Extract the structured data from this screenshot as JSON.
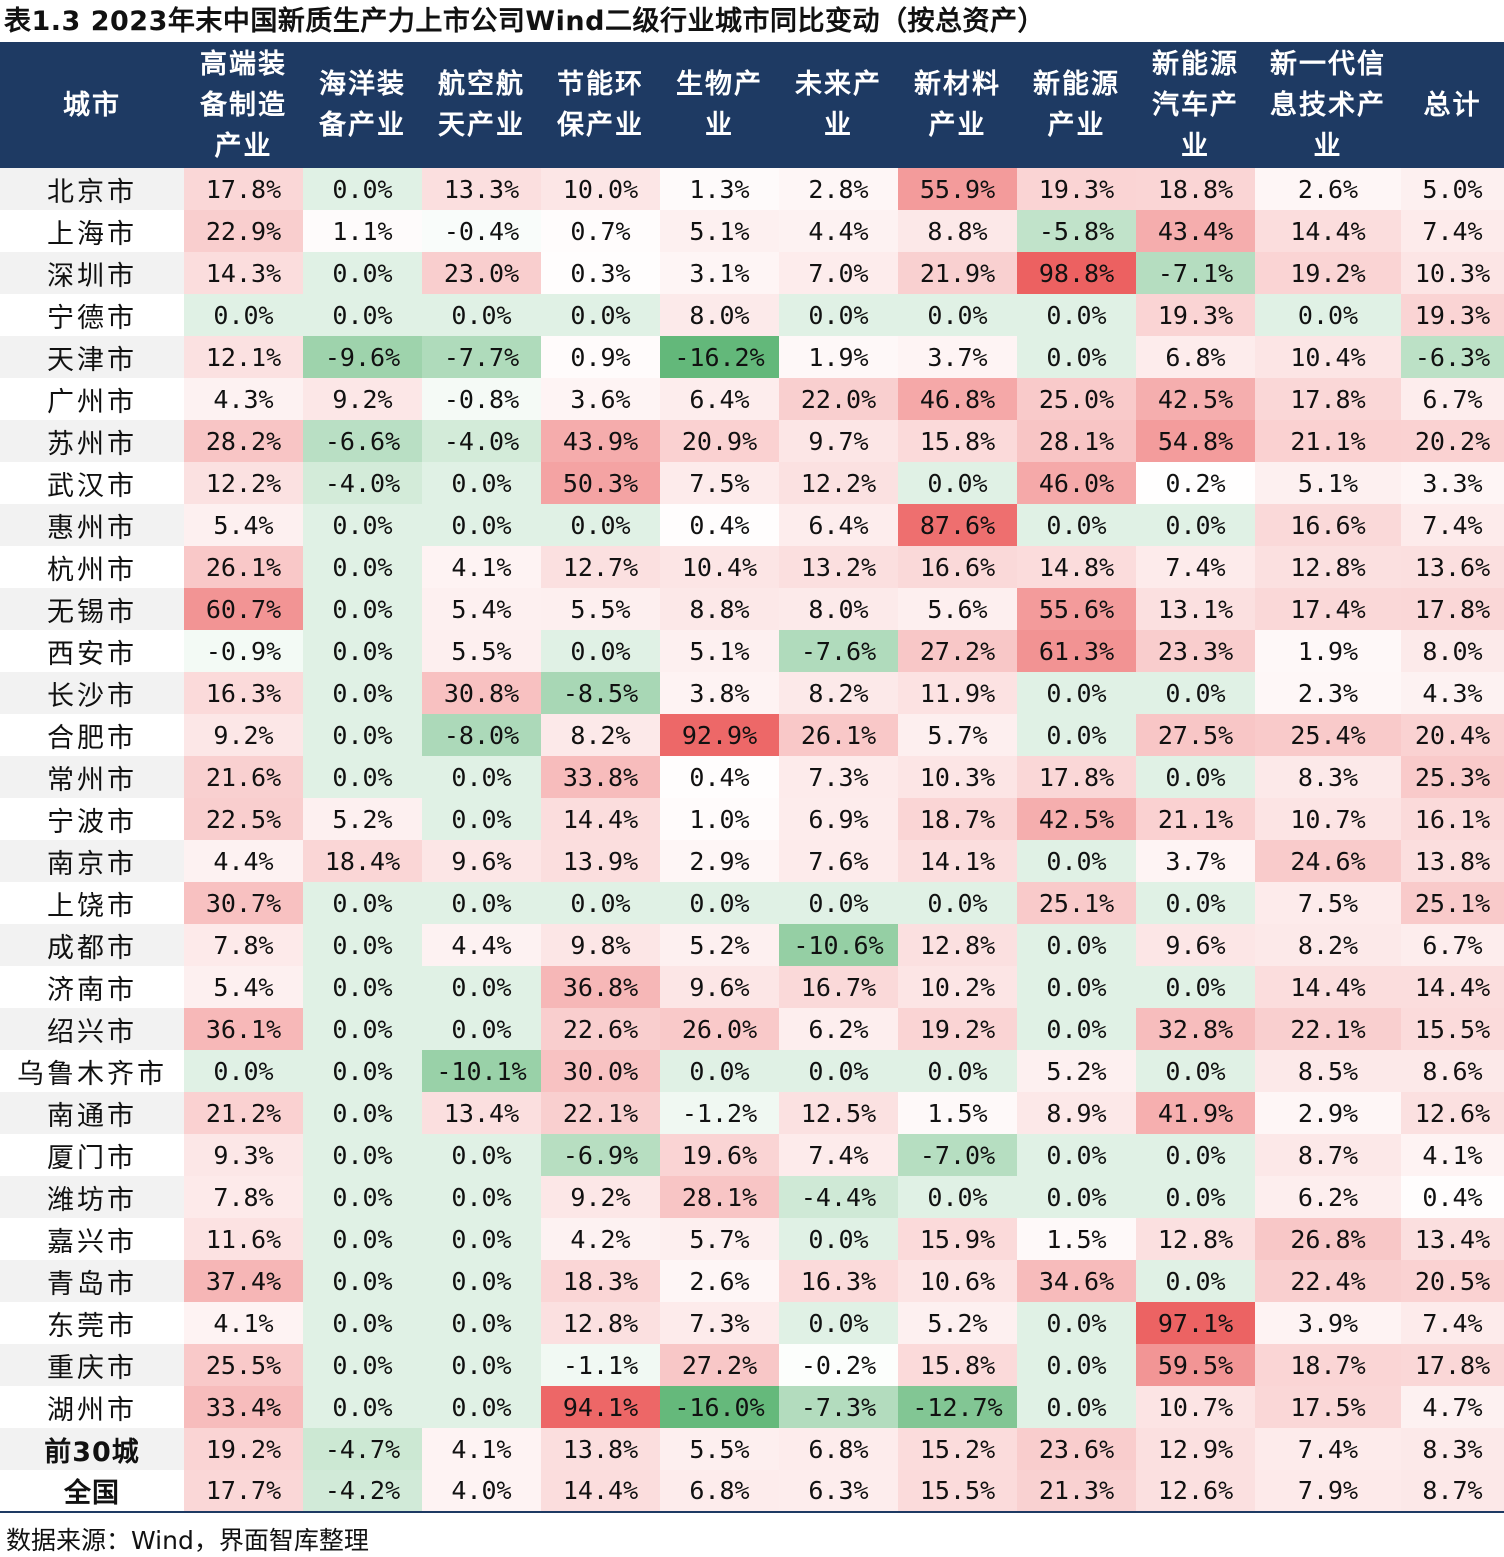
{
  "title": "表1.3 2023年末中国新质生产力上市公司Wind二级行业城市同比变动（按总资产）",
  "source": "数据来源：Wind，界面智库整理",
  "chart_data": {
    "type": "table",
    "subtype": "heatmap",
    "columns": [
      [
        "城市"
      ],
      [
        "高端装",
        "备制造",
        "产业"
      ],
      [
        "海洋装",
        "备产业"
      ],
      [
        "航空航",
        "天产业"
      ],
      [
        "节能环",
        "保产业"
      ],
      [
        "生物产",
        "业"
      ],
      [
        "未来产",
        "业"
      ],
      [
        "新材料",
        "产业"
      ],
      [
        "新能源",
        "产业"
      ],
      [
        "新能源",
        "汽车产",
        "业"
      ],
      [
        "新一代信",
        "息技术产",
        "业"
      ],
      [
        "总计"
      ]
    ],
    "unit": "%",
    "colors": {
      "positive": "#ec5f5f",
      "negative": "#63b87a",
      "zero": "#e0f1e5",
      "header": "#1e3a63"
    },
    "rows": [
      {
        "city": "北京市",
        "values": [
          17.8,
          0.0,
          13.3,
          10.0,
          1.3,
          2.8,
          55.9,
          19.3,
          18.8,
          2.6,
          5.0
        ]
      },
      {
        "city": "上海市",
        "values": [
          22.9,
          1.1,
          -0.4,
          0.7,
          5.1,
          4.4,
          8.8,
          -5.8,
          43.4,
          14.4,
          7.4
        ]
      },
      {
        "city": "深圳市",
        "values": [
          14.3,
          0.0,
          23.0,
          0.3,
          3.1,
          7.0,
          21.9,
          98.8,
          -7.1,
          19.2,
          10.3
        ]
      },
      {
        "city": "宁德市",
        "values": [
          0.0,
          0.0,
          0.0,
          0.0,
          8.0,
          0.0,
          0.0,
          0.0,
          19.3,
          0.0,
          19.3
        ]
      },
      {
        "city": "天津市",
        "values": [
          12.1,
          -9.6,
          -7.7,
          0.9,
          -16.2,
          1.9,
          3.7,
          0.0,
          6.8,
          10.4,
          -6.3
        ]
      },
      {
        "city": "广州市",
        "values": [
          4.3,
          9.2,
          -0.8,
          3.6,
          6.4,
          22.0,
          46.8,
          25.0,
          42.5,
          17.8,
          6.7
        ]
      },
      {
        "city": "苏州市",
        "values": [
          28.2,
          -6.6,
          -4.0,
          43.9,
          20.9,
          9.7,
          15.8,
          28.1,
          54.8,
          21.1,
          20.2
        ]
      },
      {
        "city": "武汉市",
        "values": [
          12.2,
          -4.0,
          0.0,
          50.3,
          7.5,
          12.2,
          0.0,
          46.0,
          0.2,
          5.1,
          3.3
        ]
      },
      {
        "city": "惠州市",
        "values": [
          5.4,
          0.0,
          0.0,
          0.0,
          0.4,
          6.4,
          87.6,
          0.0,
          0.0,
          16.6,
          7.4
        ]
      },
      {
        "city": "杭州市",
        "values": [
          26.1,
          0.0,
          4.1,
          12.7,
          10.4,
          13.2,
          16.6,
          14.8,
          7.4,
          12.8,
          13.6
        ]
      },
      {
        "city": "无锡市",
        "values": [
          60.7,
          0.0,
          5.4,
          5.5,
          8.8,
          8.0,
          5.6,
          55.6,
          13.1,
          17.4,
          17.8
        ]
      },
      {
        "city": "西安市",
        "values": [
          -0.9,
          0.0,
          5.5,
          0.0,
          5.1,
          -7.6,
          27.2,
          61.3,
          23.3,
          1.9,
          8.0
        ]
      },
      {
        "city": "长沙市",
        "values": [
          16.3,
          0.0,
          30.8,
          -8.5,
          3.8,
          8.2,
          11.9,
          0.0,
          0.0,
          2.3,
          4.3
        ]
      },
      {
        "city": "合肥市",
        "values": [
          9.2,
          0.0,
          -8.0,
          8.2,
          92.9,
          26.1,
          5.7,
          0.0,
          27.5,
          25.4,
          20.4
        ]
      },
      {
        "city": "常州市",
        "values": [
          21.6,
          0.0,
          0.0,
          33.8,
          0.4,
          7.3,
          10.3,
          17.8,
          0.0,
          8.3,
          25.3
        ]
      },
      {
        "city": "宁波市",
        "values": [
          22.5,
          5.2,
          0.0,
          14.4,
          1.0,
          6.9,
          18.7,
          42.5,
          21.1,
          10.7,
          16.1
        ]
      },
      {
        "city": "南京市",
        "values": [
          4.4,
          18.4,
          9.6,
          13.9,
          2.9,
          7.6,
          14.1,
          0.0,
          3.7,
          24.6,
          13.8
        ]
      },
      {
        "city": "上饶市",
        "values": [
          30.7,
          0.0,
          0.0,
          0.0,
          0.0,
          0.0,
          0.0,
          25.1,
          0.0,
          7.5,
          25.1
        ]
      },
      {
        "city": "成都市",
        "values": [
          7.8,
          0.0,
          4.4,
          9.8,
          5.2,
          -10.6,
          12.8,
          0.0,
          9.6,
          8.2,
          6.7
        ]
      },
      {
        "city": "济南市",
        "values": [
          5.4,
          0.0,
          0.0,
          36.8,
          9.6,
          16.7,
          10.2,
          0.0,
          0.0,
          14.4,
          14.4
        ]
      },
      {
        "city": "绍兴市",
        "values": [
          36.1,
          0.0,
          0.0,
          22.6,
          26.0,
          6.2,
          19.2,
          0.0,
          32.8,
          22.1,
          15.5
        ]
      },
      {
        "city": "乌鲁木齐市",
        "values": [
          0.0,
          0.0,
          -10.1,
          30.0,
          0.0,
          0.0,
          0.0,
          5.2,
          0.0,
          8.5,
          8.6
        ]
      },
      {
        "city": "南通市",
        "values": [
          21.2,
          0.0,
          13.4,
          22.1,
          -1.2,
          12.5,
          1.5,
          8.9,
          41.9,
          2.9,
          12.6
        ]
      },
      {
        "city": "厦门市",
        "values": [
          9.3,
          0.0,
          0.0,
          -6.9,
          19.6,
          7.4,
          -7.0,
          0.0,
          0.0,
          8.7,
          4.1
        ]
      },
      {
        "city": "潍坊市",
        "values": [
          7.8,
          0.0,
          0.0,
          9.2,
          28.1,
          -4.4,
          0.0,
          0.0,
          0.0,
          6.2,
          0.4
        ]
      },
      {
        "city": "嘉兴市",
        "values": [
          11.6,
          0.0,
          0.0,
          4.2,
          5.7,
          0.0,
          15.9,
          1.5,
          12.8,
          26.8,
          13.4
        ]
      },
      {
        "city": "青岛市",
        "values": [
          37.4,
          0.0,
          0.0,
          18.3,
          2.6,
          16.3,
          10.6,
          34.6,
          0.0,
          22.4,
          20.5
        ]
      },
      {
        "city": "东莞市",
        "values": [
          4.1,
          0.0,
          0.0,
          12.8,
          7.3,
          0.0,
          5.2,
          0.0,
          97.1,
          3.9,
          7.4
        ]
      },
      {
        "city": "重庆市",
        "values": [
          25.5,
          0.0,
          0.0,
          -1.1,
          27.2,
          -0.2,
          15.8,
          0.0,
          59.5,
          18.7,
          17.8
        ]
      },
      {
        "city": "湖州市",
        "values": [
          33.4,
          0.0,
          0.0,
          94.1,
          -16.0,
          -7.3,
          -12.7,
          0.0,
          10.7,
          17.5,
          4.7
        ]
      },
      {
        "city": "前30城",
        "values": [
          19.2,
          -4.7,
          4.1,
          13.8,
          5.5,
          6.8,
          15.2,
          23.6,
          12.9,
          7.4,
          8.3
        ]
      },
      {
        "city": "全国",
        "values": [
          17.7,
          -4.2,
          4.0,
          14.4,
          6.8,
          6.3,
          15.5,
          21.3,
          12.6,
          7.9,
          8.7
        ]
      }
    ]
  }
}
